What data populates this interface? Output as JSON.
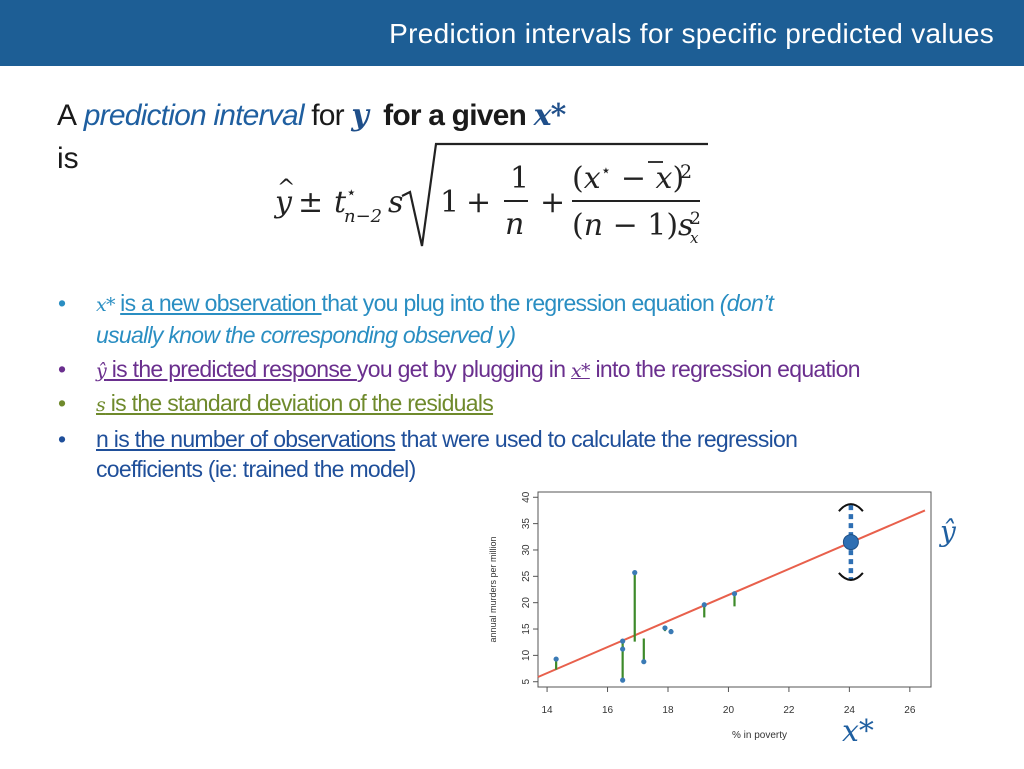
{
  "header": {
    "title": "Prediction intervals for specific predicted values"
  },
  "intro": {
    "a": "A",
    "phrase": "prediction interval",
    "for": "for",
    "y": "y",
    "rest": "for a given",
    "xstar": "x*",
    "is": "is"
  },
  "bullets": {
    "b1": {
      "math": "x* ",
      "underlined": "is a  new observation ",
      "rest": "that you plug into the regression equation ",
      "italic1": "(don’t",
      "italic2": "usually know the corresponding observed y)"
    },
    "b2": {
      "math": "ŷ",
      "underlined": " is the predicted response ",
      "rest1": "you get by plugging in ",
      "math2": "x*",
      "rest2": " into the regression equation"
    },
    "b3": {
      "math": "s",
      "underlined": " is the standard deviation of the residuals"
    },
    "b4": {
      "underlined": "n is the number of observations",
      "rest1": " that were used to calculate the regression",
      "rest2": "coefficients (ie: trained the model)"
    }
  },
  "chart_data": {
    "type": "scatter",
    "xlabel": "% in poverty",
    "ylabel": "annual murders per million",
    "xlim": [
      13.7,
      26.7
    ],
    "ylim": [
      4,
      41
    ],
    "xticks": [
      14,
      16,
      18,
      20,
      22,
      24,
      26
    ],
    "yticks": [
      5,
      10,
      15,
      20,
      25,
      30,
      35,
      40
    ],
    "points": [
      {
        "x": 14.3,
        "y": 9.3,
        "fit": 7.3
      },
      {
        "x": 16.5,
        "y": 5.3,
        "fit": 11.8
      },
      {
        "x": 16.5,
        "y": 12.7,
        "fit": 11.8
      },
      {
        "x": 16.5,
        "y": 11.2,
        "fit": 11.8
      },
      {
        "x": 16.9,
        "y": 25.7,
        "fit": 12.6
      },
      {
        "x": 17.2,
        "y": 8.8,
        "fit": 13.2
      },
      {
        "x": 17.9,
        "y": 15.2,
        "fit": 14.6
      },
      {
        "x": 18.1,
        "y": 14.5,
        "fit": 15.0
      },
      {
        "x": 19.2,
        "y": 19.6,
        "fit": 17.2
      },
      {
        "x": 20.2,
        "y": 21.7,
        "fit": 19.3
      }
    ],
    "line": {
      "x1": 13.7,
      "y1": 5.9,
      "x2": 26.5,
      "y2": 37.5
    },
    "prediction": {
      "x": 24.05,
      "y": 31.5,
      "lower": 24.5,
      "upper": 38.5
    },
    "annotations": {
      "yhat": "ŷ",
      "xstar": "x*"
    }
  }
}
